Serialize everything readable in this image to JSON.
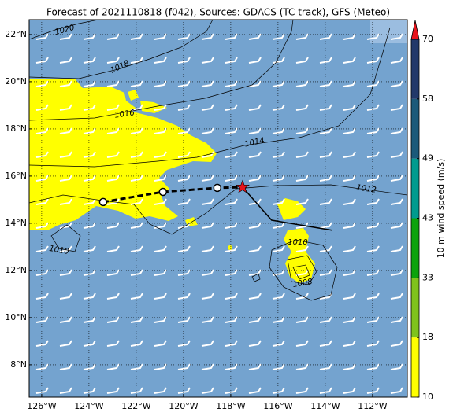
{
  "chart_data": {
    "type": "map",
    "title": "Forecast of 2021110818 (f042), Sources: GDACS (TC track), GFS (Meteo)",
    "xlim": [
      -126.53,
      -110.53
    ],
    "ylim": [
      6.63,
      22.63
    ],
    "xticks": [
      {
        "value": -126,
        "label": "126°W"
      },
      {
        "value": -124,
        "label": "124°W"
      },
      {
        "value": -122,
        "label": "122°W"
      },
      {
        "value": -120,
        "label": "120°W"
      },
      {
        "value": -118,
        "label": "118°W"
      },
      {
        "value": -116,
        "label": "116°W"
      },
      {
        "value": -114,
        "label": "114°W"
      },
      {
        "value": -112,
        "label": "112°W"
      }
    ],
    "yticks": [
      {
        "value": 8,
        "label": "8°N"
      },
      {
        "value": 10,
        "label": "10°N"
      },
      {
        "value": 12,
        "label": "12°N"
      },
      {
        "value": 14,
        "label": "14°N"
      },
      {
        "value": 16,
        "label": "16°N"
      },
      {
        "value": 18,
        "label": "18°N"
      },
      {
        "value": 20,
        "label": "20°N"
      },
      {
        "value": 22,
        "label": "22°N"
      }
    ],
    "grid": true,
    "isobar_labels": [
      1020,
      1018,
      1016,
      1014,
      1012,
      1010,
      1010,
      1008
    ],
    "past_track": {
      "x": [
        -123.4,
        -120.87,
        -118.57,
        -117.5
      ],
      "y": [
        14.9,
        15.33,
        15.5,
        15.53
      ],
      "color": "#000000"
    },
    "forecast_track": {
      "x": [
        -117.5,
        -116.27,
        -113.7
      ],
      "y": [
        15.53,
        14.13,
        13.7
      ],
      "color": "#000000"
    },
    "current_position_color": "#e8141c",
    "colorbar": {
      "label": "10 m wind speed (m/s)",
      "ticks": [
        10,
        18,
        33,
        43,
        49,
        58,
        70
      ],
      "colors": [
        "#ffff00",
        "#7fc31c",
        "#0ca30c",
        "#009b8f",
        "#1b5a7a",
        "#22386a"
      ],
      "extend_color": "#e8141c"
    }
  }
}
